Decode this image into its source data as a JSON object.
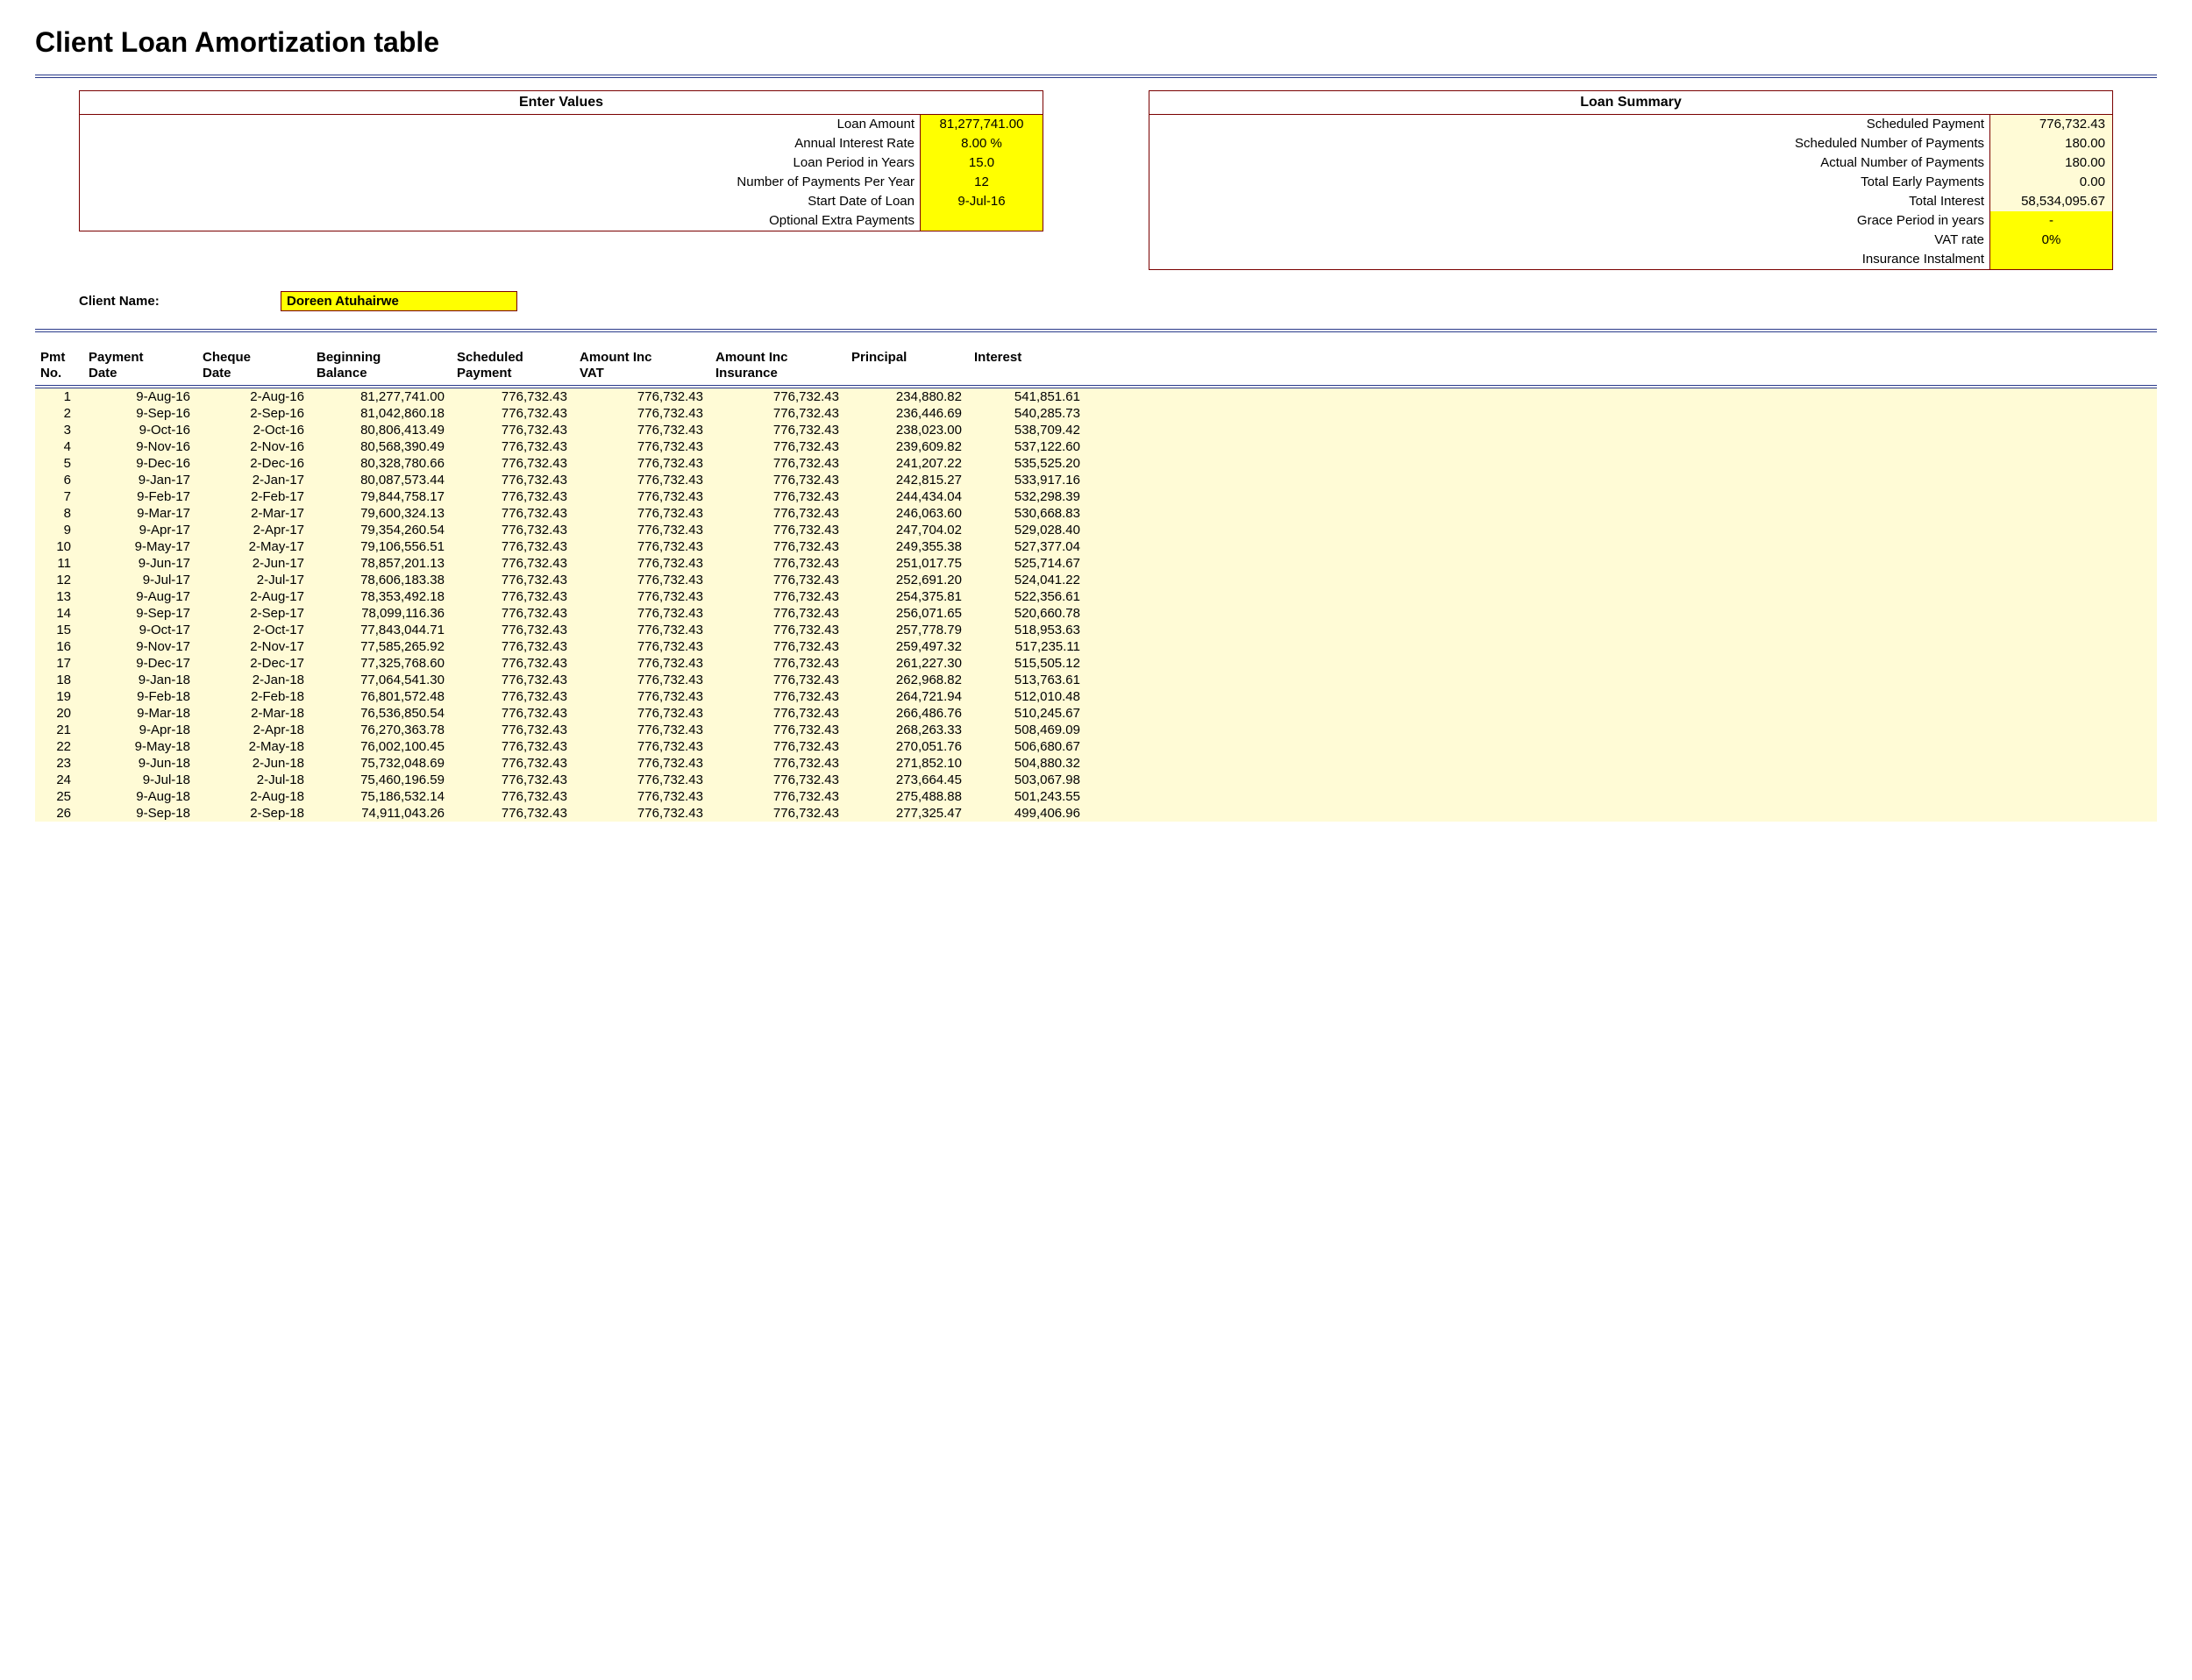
{
  "title": "Client Loan Amortization table",
  "enter_values": {
    "heading": "Enter Values",
    "rows": [
      {
        "label": "Loan Amount",
        "value": "81,277,741.00",
        "style": "yellow",
        "align": "center"
      },
      {
        "label": "Annual Interest Rate",
        "value": "8.00  %",
        "style": "yellow",
        "align": "center"
      },
      {
        "label": "Loan Period in Years",
        "value": "15.0",
        "style": "yellow",
        "align": "center"
      },
      {
        "label": "Number of Payments Per Year",
        "value": "12",
        "style": "yellow",
        "align": "center"
      },
      {
        "label": "Start Date of Loan",
        "value": "9-Jul-16",
        "style": "yellow",
        "align": "center"
      },
      {
        "label": "Optional Extra Payments",
        "value": "",
        "style": "yellow",
        "align": "center"
      }
    ]
  },
  "loan_summary": {
    "heading": "Loan Summary",
    "rows": [
      {
        "label": "Scheduled Payment",
        "value": "776,732.43",
        "style": "cream",
        "align": "right"
      },
      {
        "label": "Scheduled Number of Payments",
        "value": "180.00",
        "style": "cream",
        "align": "right"
      },
      {
        "label": "Actual Number of Payments",
        "value": "180.00",
        "style": "cream",
        "align": "right"
      },
      {
        "label": "Total Early Payments",
        "value": "0.00",
        "style": "cream",
        "align": "right"
      },
      {
        "label": "Total Interest",
        "value": "58,534,095.67",
        "style": "cream",
        "align": "right"
      },
      {
        "label": "Grace Period in years",
        "value": "-",
        "style": "yellow",
        "align": "center"
      },
      {
        "label": "VAT rate",
        "value": "0%",
        "style": "yellow",
        "align": "center"
      },
      {
        "label": "Insurance Instalment",
        "value": "",
        "style": "yellow",
        "align": "center"
      }
    ]
  },
  "client": {
    "label": "Client Name:",
    "value": "Doreen Atuhairwe"
  },
  "table": {
    "columns": [
      "Pmt No.",
      "Payment Date",
      "Cheque Date",
      "Beginning Balance",
      "Scheduled Payment",
      "Amount Inc VAT",
      "Amount Inc Insurance",
      "Principal",
      "Interest"
    ],
    "rows": [
      [
        "1",
        "9-Aug-16",
        "2-Aug-16",
        "81,277,741.00",
        "776,732.43",
        "776,732.43",
        "776,732.43",
        "234,880.82",
        "541,851.61"
      ],
      [
        "2",
        "9-Sep-16",
        "2-Sep-16",
        "81,042,860.18",
        "776,732.43",
        "776,732.43",
        "776,732.43",
        "236,446.69",
        "540,285.73"
      ],
      [
        "3",
        "9-Oct-16",
        "2-Oct-16",
        "80,806,413.49",
        "776,732.43",
        "776,732.43",
        "776,732.43",
        "238,023.00",
        "538,709.42"
      ],
      [
        "4",
        "9-Nov-16",
        "2-Nov-16",
        "80,568,390.49",
        "776,732.43",
        "776,732.43",
        "776,732.43",
        "239,609.82",
        "537,122.60"
      ],
      [
        "5",
        "9-Dec-16",
        "2-Dec-16",
        "80,328,780.66",
        "776,732.43",
        "776,732.43",
        "776,732.43",
        "241,207.22",
        "535,525.20"
      ],
      [
        "6",
        "9-Jan-17",
        "2-Jan-17",
        "80,087,573.44",
        "776,732.43",
        "776,732.43",
        "776,732.43",
        "242,815.27",
        "533,917.16"
      ],
      [
        "7",
        "9-Feb-17",
        "2-Feb-17",
        "79,844,758.17",
        "776,732.43",
        "776,732.43",
        "776,732.43",
        "244,434.04",
        "532,298.39"
      ],
      [
        "8",
        "9-Mar-17",
        "2-Mar-17",
        "79,600,324.13",
        "776,732.43",
        "776,732.43",
        "776,732.43",
        "246,063.60",
        "530,668.83"
      ],
      [
        "9",
        "9-Apr-17",
        "2-Apr-17",
        "79,354,260.54",
        "776,732.43",
        "776,732.43",
        "776,732.43",
        "247,704.02",
        "529,028.40"
      ],
      [
        "10",
        "9-May-17",
        "2-May-17",
        "79,106,556.51",
        "776,732.43",
        "776,732.43",
        "776,732.43",
        "249,355.38",
        "527,377.04"
      ],
      [
        "11",
        "9-Jun-17",
        "2-Jun-17",
        "78,857,201.13",
        "776,732.43",
        "776,732.43",
        "776,732.43",
        "251,017.75",
        "525,714.67"
      ],
      [
        "12",
        "9-Jul-17",
        "2-Jul-17",
        "78,606,183.38",
        "776,732.43",
        "776,732.43",
        "776,732.43",
        "252,691.20",
        "524,041.22"
      ],
      [
        "13",
        "9-Aug-17",
        "2-Aug-17",
        "78,353,492.18",
        "776,732.43",
        "776,732.43",
        "776,732.43",
        "254,375.81",
        "522,356.61"
      ],
      [
        "14",
        "9-Sep-17",
        "2-Sep-17",
        "78,099,116.36",
        "776,732.43",
        "776,732.43",
        "776,732.43",
        "256,071.65",
        "520,660.78"
      ],
      [
        "15",
        "9-Oct-17",
        "2-Oct-17",
        "77,843,044.71",
        "776,732.43",
        "776,732.43",
        "776,732.43",
        "257,778.79",
        "518,953.63"
      ],
      [
        "16",
        "9-Nov-17",
        "2-Nov-17",
        "77,585,265.92",
        "776,732.43",
        "776,732.43",
        "776,732.43",
        "259,497.32",
        "517,235.11"
      ],
      [
        "17",
        "9-Dec-17",
        "2-Dec-17",
        "77,325,768.60",
        "776,732.43",
        "776,732.43",
        "776,732.43",
        "261,227.30",
        "515,505.12"
      ],
      [
        "18",
        "9-Jan-18",
        "2-Jan-18",
        "77,064,541.30",
        "776,732.43",
        "776,732.43",
        "776,732.43",
        "262,968.82",
        "513,763.61"
      ],
      [
        "19",
        "9-Feb-18",
        "2-Feb-18",
        "76,801,572.48",
        "776,732.43",
        "776,732.43",
        "776,732.43",
        "264,721.94",
        "512,010.48"
      ],
      [
        "20",
        "9-Mar-18",
        "2-Mar-18",
        "76,536,850.54",
        "776,732.43",
        "776,732.43",
        "776,732.43",
        "266,486.76",
        "510,245.67"
      ],
      [
        "21",
        "9-Apr-18",
        "2-Apr-18",
        "76,270,363.78",
        "776,732.43",
        "776,732.43",
        "776,732.43",
        "268,263.33",
        "508,469.09"
      ],
      [
        "22",
        "9-May-18",
        "2-May-18",
        "76,002,100.45",
        "776,732.43",
        "776,732.43",
        "776,732.43",
        "270,051.76",
        "506,680.67"
      ],
      [
        "23",
        "9-Jun-18",
        "2-Jun-18",
        "75,732,048.69",
        "776,732.43",
        "776,732.43",
        "776,732.43",
        "271,852.10",
        "504,880.32"
      ],
      [
        "24",
        "9-Jul-18",
        "2-Jul-18",
        "75,460,196.59",
        "776,732.43",
        "776,732.43",
        "776,732.43",
        "273,664.45",
        "503,067.98"
      ],
      [
        "25",
        "9-Aug-18",
        "2-Aug-18",
        "75,186,532.14",
        "776,732.43",
        "776,732.43",
        "776,732.43",
        "275,488.88",
        "501,243.55"
      ],
      [
        "26",
        "9-Sep-18",
        "2-Sep-18",
        "74,911,043.26",
        "776,732.43",
        "776,732.43",
        "776,732.43",
        "277,325.47",
        "499,406.96"
      ]
    ]
  },
  "colors": {
    "rule": "#2a3a8a",
    "box_border": "#7a0000",
    "yellow": "#ffff00",
    "cream": "#fffbd6"
  }
}
